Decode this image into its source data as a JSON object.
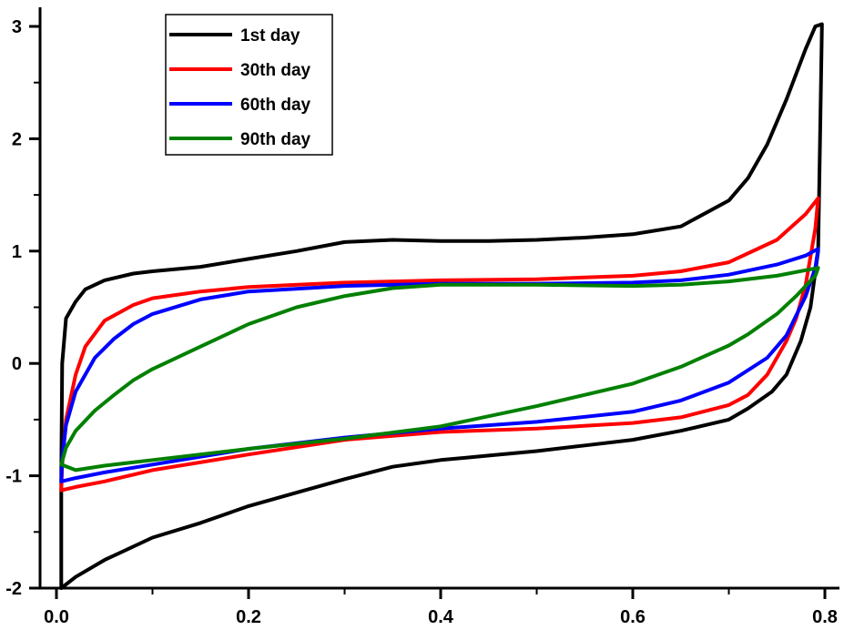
{
  "chart_data": {
    "type": "line",
    "title": "",
    "xlabel": "",
    "ylabel": "",
    "xlim": [
      0.0,
      0.8
    ],
    "ylim": [
      -2,
      3
    ],
    "x_ticks": [
      "0.0",
      "0.2",
      "0.4",
      "0.6",
      "0.8"
    ],
    "y_ticks": [
      "3",
      "2",
      "1",
      "0",
      "-1",
      "-2"
    ],
    "grid": false,
    "legend_position": "top-left",
    "series": [
      {
        "name": "1st day",
        "color": "#000000",
        "points": [
          [
            0.005,
            -2.0
          ],
          [
            0.005,
            -1.0
          ],
          [
            0.006,
            0.0
          ],
          [
            0.01,
            0.4
          ],
          [
            0.02,
            0.55
          ],
          [
            0.03,
            0.66
          ],
          [
            0.05,
            0.74
          ],
          [
            0.08,
            0.8
          ],
          [
            0.1,
            0.82
          ],
          [
            0.15,
            0.86
          ],
          [
            0.2,
            0.93
          ],
          [
            0.25,
            1.0
          ],
          [
            0.3,
            1.08
          ],
          [
            0.35,
            1.1
          ],
          [
            0.4,
            1.09
          ],
          [
            0.45,
            1.09
          ],
          [
            0.5,
            1.1
          ],
          [
            0.55,
            1.12
          ],
          [
            0.6,
            1.15
          ],
          [
            0.65,
            1.22
          ],
          [
            0.7,
            1.45
          ],
          [
            0.72,
            1.65
          ],
          [
            0.74,
            1.95
          ],
          [
            0.76,
            2.35
          ],
          [
            0.78,
            2.8
          ],
          [
            0.79,
            3.0
          ],
          [
            0.797,
            3.02
          ],
          [
            0.795,
            2.0
          ],
          [
            0.793,
            1.0
          ],
          [
            0.785,
            0.5
          ],
          [
            0.775,
            0.2
          ],
          [
            0.76,
            -0.1
          ],
          [
            0.745,
            -0.25
          ],
          [
            0.72,
            -0.4
          ],
          [
            0.7,
            -0.5
          ],
          [
            0.65,
            -0.6
          ],
          [
            0.6,
            -0.68
          ],
          [
            0.55,
            -0.73
          ],
          [
            0.5,
            -0.78
          ],
          [
            0.45,
            -0.82
          ],
          [
            0.4,
            -0.86
          ],
          [
            0.35,
            -0.92
          ],
          [
            0.3,
            -1.03
          ],
          [
            0.25,
            -1.15
          ],
          [
            0.2,
            -1.27
          ],
          [
            0.15,
            -1.42
          ],
          [
            0.1,
            -1.55
          ],
          [
            0.05,
            -1.75
          ],
          [
            0.02,
            -1.9
          ],
          [
            0.005,
            -2.0
          ]
        ]
      },
      {
        "name": "30th day",
        "color": "#ff0000",
        "points": [
          [
            0.005,
            -1.13
          ],
          [
            0.006,
            -0.9
          ],
          [
            0.01,
            -0.5
          ],
          [
            0.02,
            -0.1
          ],
          [
            0.03,
            0.15
          ],
          [
            0.05,
            0.38
          ],
          [
            0.08,
            0.52
          ],
          [
            0.1,
            0.58
          ],
          [
            0.15,
            0.64
          ],
          [
            0.2,
            0.68
          ],
          [
            0.3,
            0.72
          ],
          [
            0.4,
            0.74
          ],
          [
            0.5,
            0.75
          ],
          [
            0.6,
            0.78
          ],
          [
            0.65,
            0.82
          ],
          [
            0.7,
            0.9
          ],
          [
            0.75,
            1.1
          ],
          [
            0.78,
            1.33
          ],
          [
            0.793,
            1.47
          ],
          [
            0.79,
            1.2
          ],
          [
            0.78,
            0.7
          ],
          [
            0.77,
            0.4
          ],
          [
            0.76,
            0.2
          ],
          [
            0.74,
            -0.1
          ],
          [
            0.72,
            -0.28
          ],
          [
            0.7,
            -0.37
          ],
          [
            0.65,
            -0.48
          ],
          [
            0.6,
            -0.53
          ],
          [
            0.5,
            -0.58
          ],
          [
            0.4,
            -0.61
          ],
          [
            0.3,
            -0.68
          ],
          [
            0.2,
            -0.81
          ],
          [
            0.1,
            -0.95
          ],
          [
            0.05,
            -1.05
          ],
          [
            0.02,
            -1.1
          ],
          [
            0.005,
            -1.13
          ]
        ]
      },
      {
        "name": "60th day",
        "color": "#0000ff",
        "points": [
          [
            0.005,
            -1.05
          ],
          [
            0.006,
            -0.85
          ],
          [
            0.01,
            -0.55
          ],
          [
            0.02,
            -0.25
          ],
          [
            0.04,
            0.05
          ],
          [
            0.06,
            0.22
          ],
          [
            0.08,
            0.35
          ],
          [
            0.1,
            0.44
          ],
          [
            0.15,
            0.57
          ],
          [
            0.2,
            0.64
          ],
          [
            0.3,
            0.69
          ],
          [
            0.4,
            0.71
          ],
          [
            0.5,
            0.71
          ],
          [
            0.6,
            0.72
          ],
          [
            0.65,
            0.74
          ],
          [
            0.7,
            0.79
          ],
          [
            0.75,
            0.88
          ],
          [
            0.78,
            0.96
          ],
          [
            0.793,
            1.02
          ],
          [
            0.79,
            0.85
          ],
          [
            0.78,
            0.6
          ],
          [
            0.76,
            0.25
          ],
          [
            0.74,
            0.05
          ],
          [
            0.7,
            -0.17
          ],
          [
            0.65,
            -0.33
          ],
          [
            0.6,
            -0.43
          ],
          [
            0.5,
            -0.52
          ],
          [
            0.4,
            -0.58
          ],
          [
            0.3,
            -0.66
          ],
          [
            0.2,
            -0.76
          ],
          [
            0.1,
            -0.9
          ],
          [
            0.05,
            -0.97
          ],
          [
            0.02,
            -1.02
          ],
          [
            0.005,
            -1.05
          ]
        ]
      },
      {
        "name": "90th day",
        "color": "#008000",
        "points": [
          [
            0.005,
            -0.9
          ],
          [
            0.01,
            -0.75
          ],
          [
            0.02,
            -0.6
          ],
          [
            0.04,
            -0.42
          ],
          [
            0.06,
            -0.28
          ],
          [
            0.08,
            -0.15
          ],
          [
            0.1,
            -0.05
          ],
          [
            0.15,
            0.15
          ],
          [
            0.2,
            0.35
          ],
          [
            0.25,
            0.5
          ],
          [
            0.3,
            0.6
          ],
          [
            0.35,
            0.67
          ],
          [
            0.4,
            0.7
          ],
          [
            0.5,
            0.7
          ],
          [
            0.6,
            0.69
          ],
          [
            0.65,
            0.7
          ],
          [
            0.7,
            0.73
          ],
          [
            0.75,
            0.78
          ],
          [
            0.78,
            0.83
          ],
          [
            0.793,
            0.85
          ],
          [
            0.79,
            0.78
          ],
          [
            0.77,
            0.6
          ],
          [
            0.75,
            0.44
          ],
          [
            0.72,
            0.26
          ],
          [
            0.7,
            0.16
          ],
          [
            0.65,
            -0.03
          ],
          [
            0.6,
            -0.18
          ],
          [
            0.5,
            -0.38
          ],
          [
            0.4,
            -0.56
          ],
          [
            0.3,
            -0.67
          ],
          [
            0.2,
            -0.76
          ],
          [
            0.1,
            -0.86
          ],
          [
            0.05,
            -0.91
          ],
          [
            0.02,
            -0.95
          ],
          [
            0.005,
            -0.9
          ]
        ]
      }
    ]
  }
}
